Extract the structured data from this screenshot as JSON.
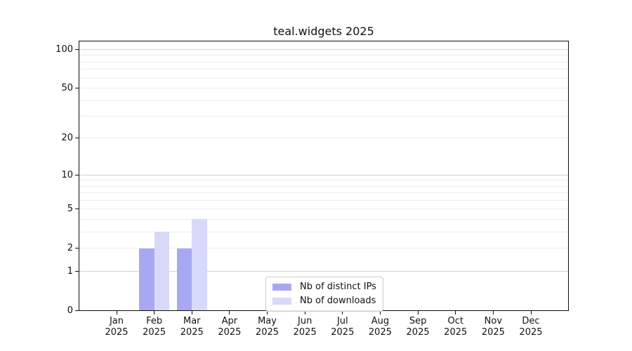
{
  "chart_data": {
    "type": "bar",
    "title": "teal.widgets 2025",
    "categories": [
      "Jan 2025",
      "Feb 2025",
      "Mar 2025",
      "Apr 2025",
      "May 2025",
      "Jun 2025",
      "Jul 2025",
      "Aug 2025",
      "Sep 2025",
      "Oct 2025",
      "Nov 2025",
      "Dec 2025"
    ],
    "series": [
      {
        "name": "Nb of distinct IPs",
        "color": "#a8a8f2",
        "values": [
          0,
          2,
          2,
          0,
          0,
          0,
          0,
          0,
          0,
          0,
          0,
          0
        ]
      },
      {
        "name": "Nb of downloads",
        "color": "#d8d9f8",
        "values": [
          0,
          3,
          4,
          0,
          0,
          0,
          0,
          0,
          0,
          0,
          0,
          0
        ]
      }
    ],
    "xlabel": "",
    "ylabel": "",
    "yscale": "log1p",
    "ylim": [
      0,
      115.6
    ],
    "yticks": [
      0,
      1,
      2,
      5,
      10,
      20,
      50,
      100
    ],
    "minor_gridlines": [
      2,
      3,
      4,
      5,
      6,
      7,
      8,
      9,
      20,
      30,
      40,
      50,
      60,
      70,
      80,
      90
    ],
    "major_gridlines": [
      1,
      10,
      100
    ],
    "grid": "horizontal",
    "legend_position": "inside-bottom-center",
    "colors": {
      "axis": "#0d0d0d",
      "text": "#111111",
      "grid_minor": "#ececec",
      "grid_major": "#d2d2d2",
      "legend_border": "#cccccc",
      "background": "#ffffff"
    }
  }
}
